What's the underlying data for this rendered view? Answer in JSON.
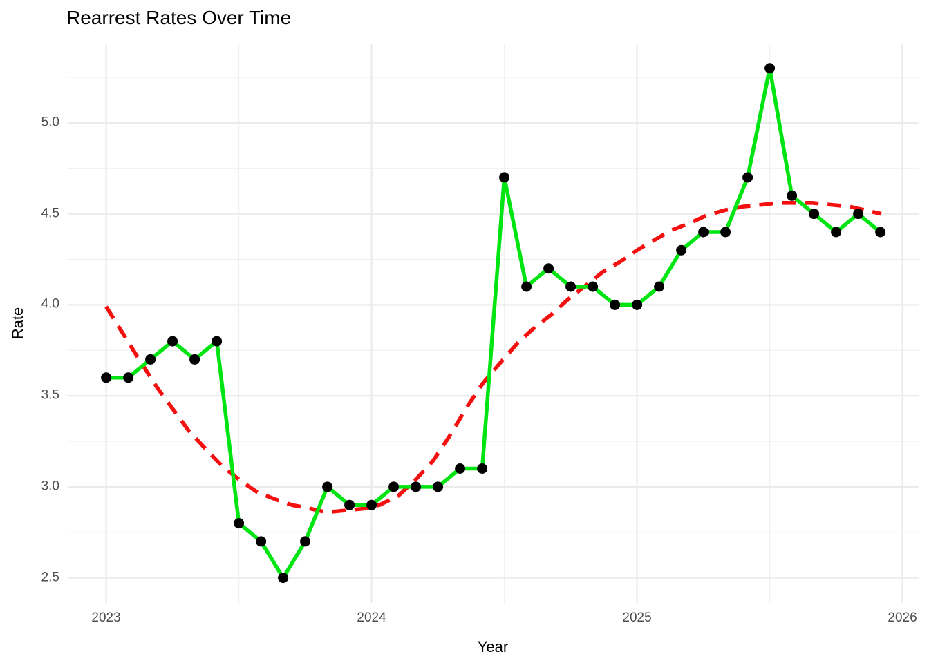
{
  "colors": {
    "background": "#ffffff",
    "grid_major": "#ebebeb",
    "grid_minor": "#f0f0f0",
    "tick_text": "#4d4d4d",
    "title_text": "#000000",
    "series_line": "#00e412",
    "series_marker": "#000000",
    "trend_line": "#f51010"
  },
  "chart_data": {
    "type": "line",
    "title": "Rearrest Rates Over Time",
    "xlabel": "Year",
    "ylabel": "Rate",
    "grid": "major+minor, no axis lines (ggplot minimal theme)",
    "legend_position": "none",
    "xlim": [
      2022.854,
      2026.061
    ],
    "ylim": [
      2.362,
      5.436
    ],
    "x_ticks": [
      {
        "v": 2023,
        "label": "2023"
      },
      {
        "v": 2024,
        "label": "2024"
      },
      {
        "v": 2025,
        "label": "2025"
      },
      {
        "v": 2026,
        "label": "2026"
      }
    ],
    "x_minor_ticks": [
      2023.5,
      2024.5,
      2025.5
    ],
    "y_ticks": [
      {
        "v": 2.5,
        "label": "2.5"
      },
      {
        "v": 3.0,
        "label": "3.0"
      },
      {
        "v": 3.5,
        "label": "3.5"
      },
      {
        "v": 4.0,
        "label": "4.0"
      },
      {
        "v": 4.5,
        "label": "4.5"
      },
      {
        "v": 5.0,
        "label": "5.0"
      }
    ],
    "y_minor_ticks": [
      2.75,
      3.25,
      3.75,
      4.25,
      4.75,
      5.25
    ],
    "series": [
      {
        "name": "monthly-rearrest-rate",
        "style": "solid-with-points",
        "x_start_year": 2023,
        "x_step_years": 0.0833333,
        "values": [
          3.6,
          3.6,
          3.7,
          3.8,
          3.7,
          3.8,
          2.8,
          2.7,
          2.5,
          2.7,
          3.0,
          2.9,
          2.9,
          3.0,
          3.0,
          3.0,
          3.1,
          3.1,
          4.7,
          4.1,
          4.2,
          4.1,
          4.1,
          4.0,
          4.0,
          4.1,
          4.3,
          4.4,
          4.4,
          4.7,
          5.3,
          4.6,
          4.5,
          4.4,
          4.5,
          4.4
        ]
      },
      {
        "name": "smoothed-trend",
        "style": "dashed",
        "points": [
          [
            2023.0,
            3.99
          ],
          [
            2023.06,
            3.85
          ],
          [
            2023.12,
            3.71
          ],
          [
            2023.19,
            3.55
          ],
          [
            2023.25,
            3.43
          ],
          [
            2023.31,
            3.31
          ],
          [
            2023.38,
            3.2
          ],
          [
            2023.44,
            3.11
          ],
          [
            2023.51,
            3.03
          ],
          [
            2023.57,
            2.97
          ],
          [
            2023.64,
            2.93
          ],
          [
            2023.7,
            2.9
          ],
          [
            2023.77,
            2.88
          ],
          [
            2023.83,
            2.86
          ],
          [
            2023.9,
            2.87
          ],
          [
            2023.97,
            2.88
          ],
          [
            2024.03,
            2.9
          ],
          [
            2024.1,
            2.95
          ],
          [
            2024.16,
            3.03
          ],
          [
            2024.23,
            3.14
          ],
          [
            2024.29,
            3.27
          ],
          [
            2024.36,
            3.44
          ],
          [
            2024.42,
            3.57
          ],
          [
            2024.49,
            3.69
          ],
          [
            2024.55,
            3.79
          ],
          [
            2024.61,
            3.87
          ],
          [
            2024.68,
            3.95
          ],
          [
            2024.74,
            4.03
          ],
          [
            2024.81,
            4.11
          ],
          [
            2024.87,
            4.18
          ],
          [
            2024.94,
            4.24
          ],
          [
            2025.0,
            4.3
          ],
          [
            2025.07,
            4.36
          ],
          [
            2025.13,
            4.41
          ],
          [
            2025.2,
            4.45
          ],
          [
            2025.26,
            4.49
          ],
          [
            2025.33,
            4.52
          ],
          [
            2025.4,
            4.54
          ],
          [
            2025.47,
            4.55
          ],
          [
            2025.53,
            4.56
          ],
          [
            2025.6,
            4.56
          ],
          [
            2025.66,
            4.56
          ],
          [
            2025.73,
            4.55
          ],
          [
            2025.8,
            4.54
          ],
          [
            2025.86,
            4.52
          ],
          [
            2025.92,
            4.5
          ]
        ]
      }
    ]
  }
}
